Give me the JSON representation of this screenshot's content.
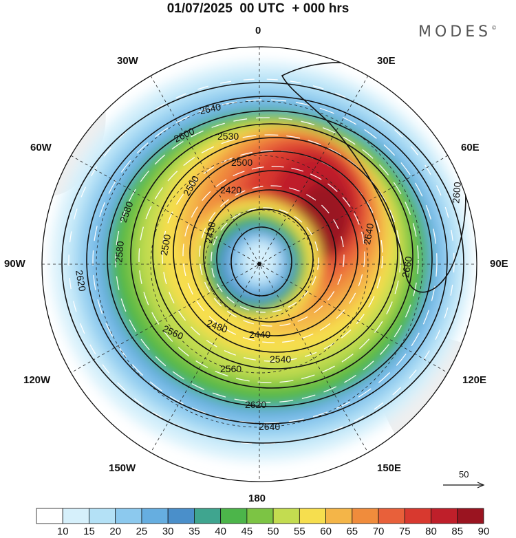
{
  "title": "01/07/2025  00 UTC  + 000 hrs",
  "brand": "MODES",
  "brand_mark": "©",
  "longitude_labels": {
    "top": "0",
    "bottom": "180",
    "left": "90W",
    "right": "90E",
    "n30w": "30W",
    "n30e": "30E",
    "w60": "60W",
    "e60": "60E",
    "w120": "120W",
    "e120": "120E",
    "w150": "150W",
    "e150": "150E"
  },
  "vector_scale_label": "50",
  "colorbar": {
    "levels": [
      "10",
      "15",
      "20",
      "25",
      "30",
      "35",
      "40",
      "45",
      "50",
      "55",
      "60",
      "65",
      "70",
      "75",
      "80",
      "85",
      "90"
    ],
    "colors": [
      "#ffffff",
      "#d6f0fb",
      "#b4e1f6",
      "#8cc9ee",
      "#66aee0",
      "#4a8fca",
      "#3fa58f",
      "#4cb54a",
      "#7cc444",
      "#c3dc50",
      "#f6de4e",
      "#f4b548",
      "#f08c3c",
      "#e8603a",
      "#d8392f",
      "#bf1f2a",
      "#9a1420"
    ]
  },
  "contour_labels": [
    "2640",
    "2600",
    "2580",
    "2620",
    "2500",
    "2420",
    "2560",
    "2480",
    "2440",
    "2540",
    "2660",
    "2600",
    "2640",
    "2620",
    "2640",
    "2530",
    "2500",
    "2430",
    "2500",
    "2580",
    "2560"
  ],
  "colors": {
    "land": "#f2f2f2",
    "frame": "#111111"
  }
}
